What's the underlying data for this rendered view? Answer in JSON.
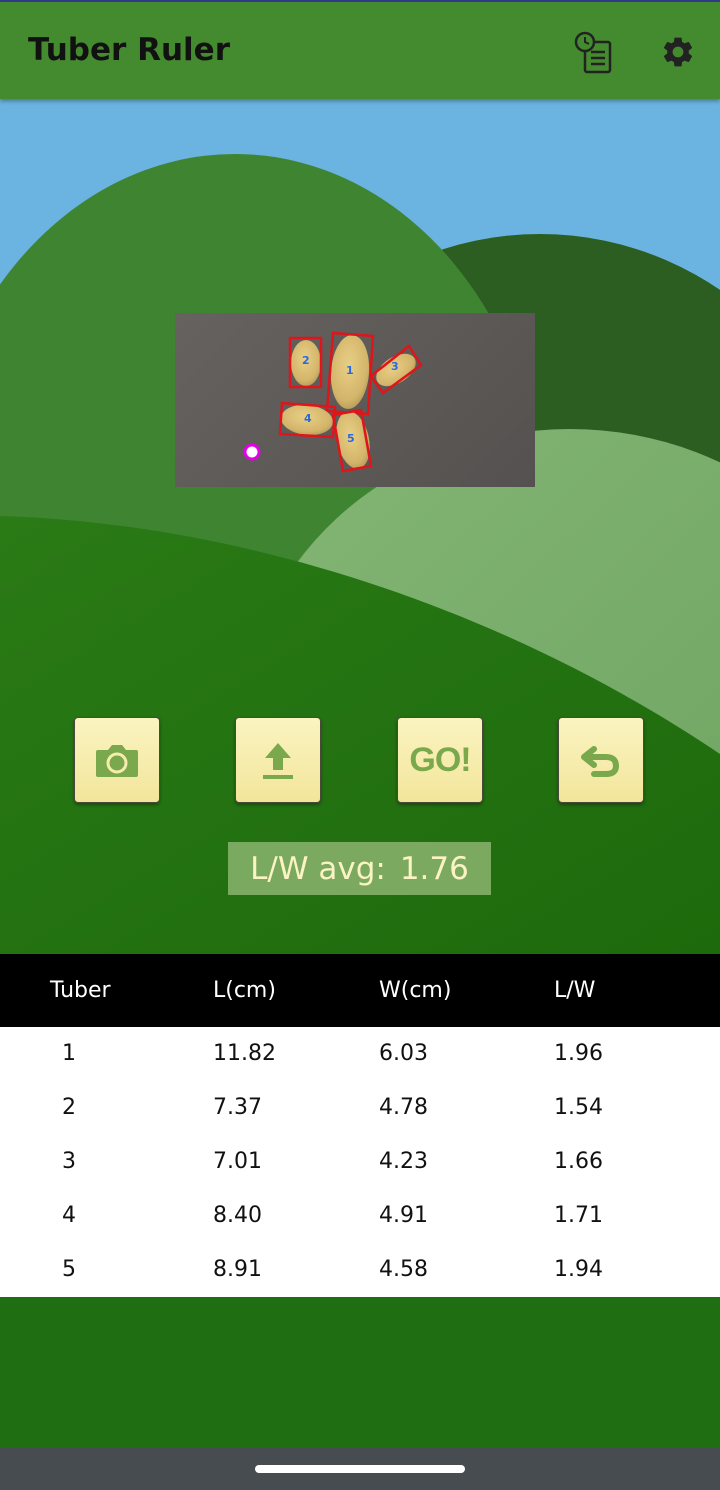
{
  "app": {
    "title": "Tuber Ruler"
  },
  "toolbar": {
    "history_icon": "history-list-icon",
    "settings_icon": "gear-icon"
  },
  "image": {
    "labels": [
      "1",
      "2",
      "3",
      "4",
      "5"
    ]
  },
  "actions": {
    "camera_icon": "camera-icon",
    "upload_icon": "upload-icon",
    "go_label": "GO!",
    "undo_icon": "undo-icon"
  },
  "summary": {
    "label": "L/W avg:",
    "value": "1.76"
  },
  "table": {
    "headers": [
      "Tuber",
      "L(cm)",
      "W(cm)",
      "L/W"
    ],
    "rows": [
      [
        "1",
        "11.82",
        "6.03",
        "1.96"
      ],
      [
        "2",
        "7.37",
        "4.78",
        "1.54"
      ],
      [
        "3",
        "7.01",
        "4.23",
        "1.66"
      ],
      [
        "4",
        "8.40",
        "4.91",
        "1.71"
      ],
      [
        "5",
        "8.91",
        "4.58",
        "1.94"
      ]
    ]
  },
  "colors": {
    "appbar": "#448a2e",
    "sky": "#6bb3e0",
    "button_face": "#f6ecae",
    "button_icon": "#7aa84c",
    "avg_text": "#fbf3c4",
    "box_outline": "#e0141a",
    "label_text": "#2a6ae0",
    "marker": "#e400e8"
  }
}
